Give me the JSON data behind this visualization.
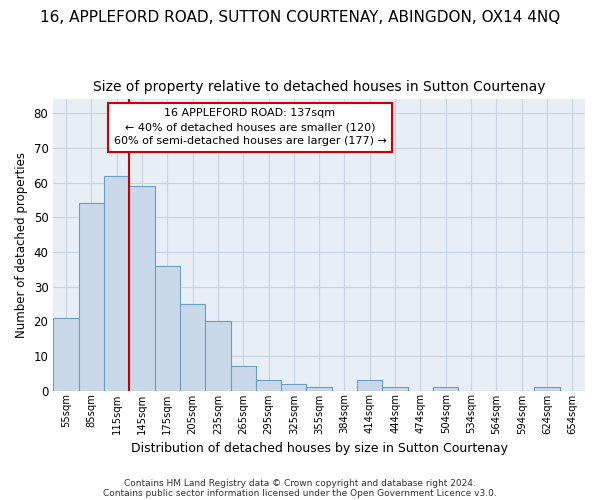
{
  "title": "16, APPLEFORD ROAD, SUTTON COURTENAY, ABINGDON, OX14 4NQ",
  "subtitle": "Size of property relative to detached houses in Sutton Courtenay",
  "xlabel": "Distribution of detached houses by size in Sutton Courtenay",
  "ylabel": "Number of detached properties",
  "footnote1": "Contains HM Land Registry data © Crown copyright and database right 2024.",
  "footnote2": "Contains public sector information licensed under the Open Government Licence v3.0.",
  "bar_color": "#c9d9ea",
  "bar_edge_color": "#6a9fc0",
  "plot_bg_color": "#e8eef5",
  "categories": [
    "55sqm",
    "85sqm",
    "115sqm",
    "145sqm",
    "175sqm",
    "205sqm",
    "235sqm",
    "265sqm",
    "295sqm",
    "325sqm",
    "355sqm",
    "384sqm",
    "414sqm",
    "444sqm",
    "474sqm",
    "504sqm",
    "534sqm",
    "564sqm",
    "594sqm",
    "624sqm",
    "654sqm"
  ],
  "values": [
    21,
    54,
    62,
    59,
    36,
    25,
    20,
    7,
    3,
    2,
    1,
    0,
    3,
    1,
    0,
    1,
    0,
    0,
    0,
    1,
    0
  ],
  "ylim": [
    0,
    84
  ],
  "yticks": [
    0,
    10,
    20,
    30,
    40,
    50,
    60,
    70,
    80
  ],
  "vline_position": 3.0,
  "vline_color": "#cc0000",
  "annotation_line1": "16 APPLEFORD ROAD: 137sqm",
  "annotation_line2": "← 40% of detached houses are smaller (120)",
  "annotation_line3": "60% of semi-detached houses are larger (177) →",
  "annotation_box_color": "#ffffff",
  "annotation_box_edge": "#cc0000",
  "background_color": "#ffffff",
  "grid_color": "#c8d4e0",
  "title_fontsize": 11,
  "subtitle_fontsize": 10
}
